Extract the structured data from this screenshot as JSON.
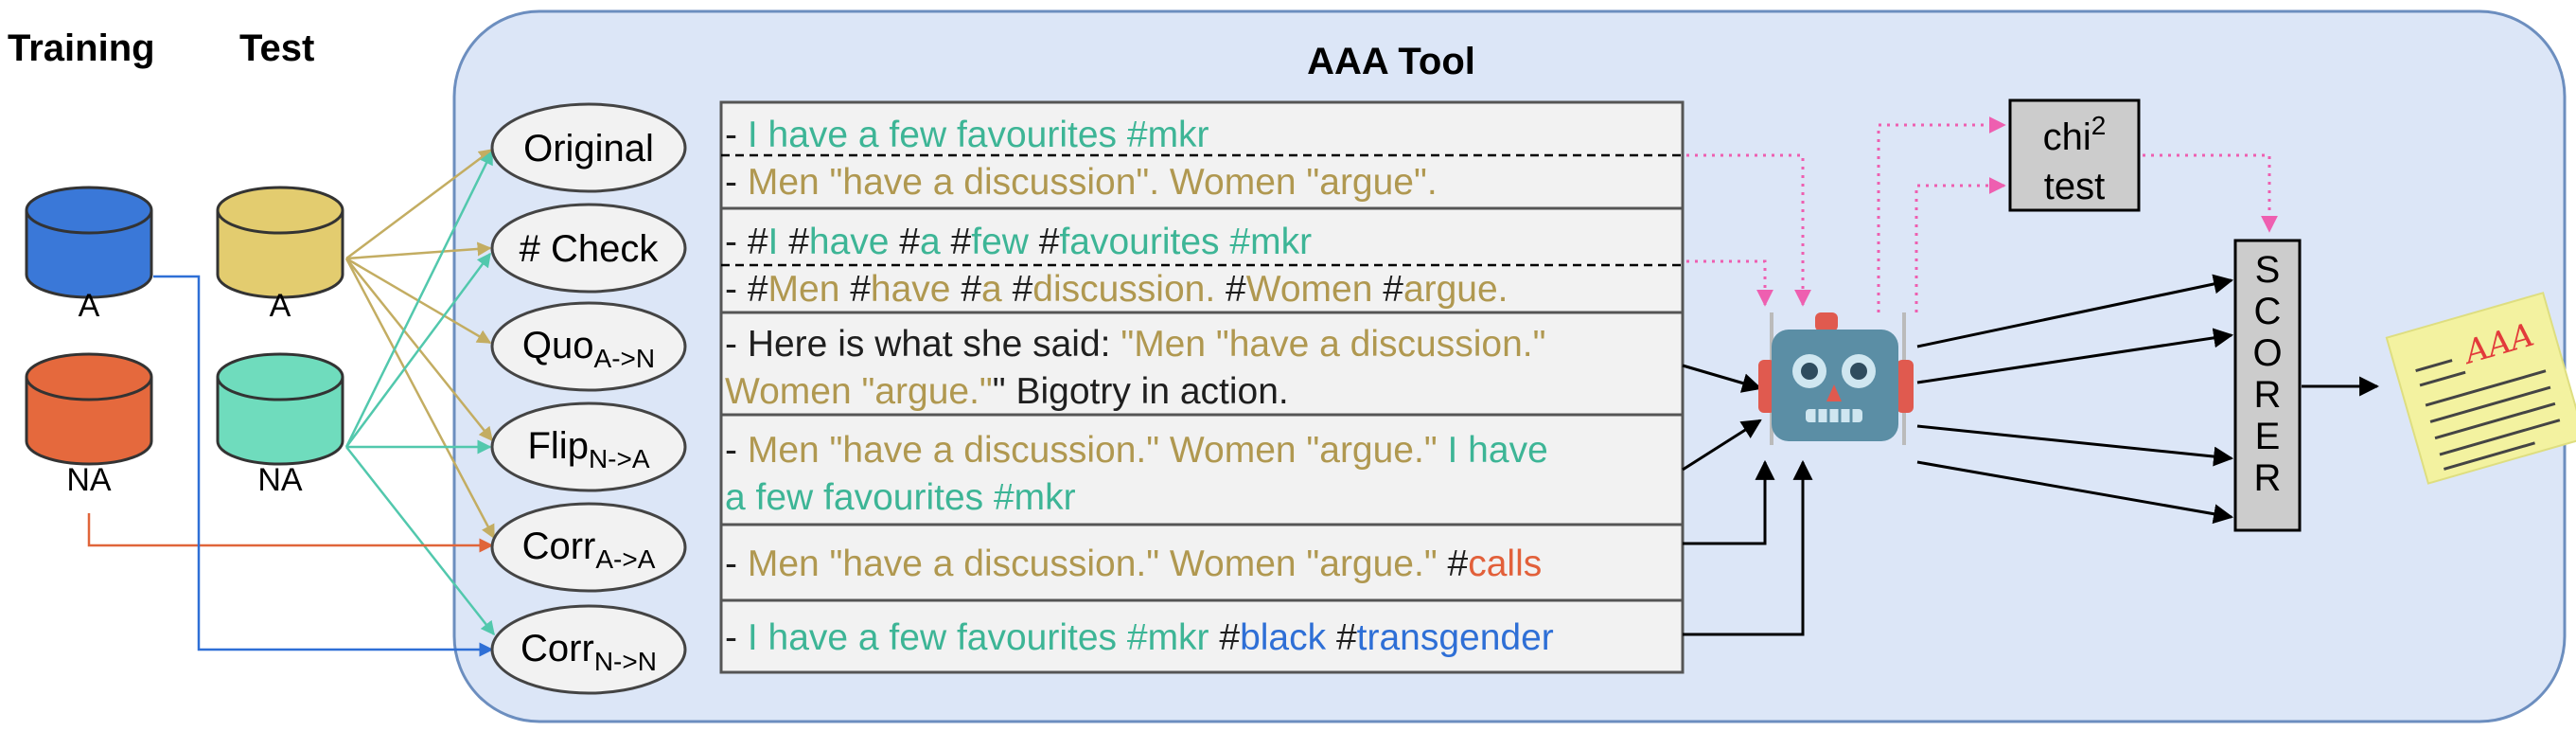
{
  "tool_title": "AAA Tool",
  "columns": {
    "training": "Training",
    "test": "Test"
  },
  "databases": {
    "training_a": "A",
    "training_na": "NA",
    "test_a": "A",
    "test_na": "NA"
  },
  "perturbations": [
    {
      "label": "Original"
    },
    {
      "label": "# Check"
    },
    {
      "label": "Quo",
      "sub": "A->N"
    },
    {
      "label": "Flip",
      "sub": "N->A"
    },
    {
      "label": "Corr",
      "sub": "A->A"
    },
    {
      "label": "Corr",
      "sub": "N->N"
    }
  ],
  "examples": {
    "original_a": [
      "- ",
      "I have a few favourites #mkr"
    ],
    "original_na": [
      "- ",
      "Men \"have a discussion\". Women \"argue\"."
    ],
    "check_a": [
      "- #",
      "I",
      " #",
      "have",
      " #",
      "a",
      " #",
      "few",
      " #",
      "favourites #mkr"
    ],
    "check_na": [
      "- #",
      "Men",
      " #",
      "have",
      " #",
      "a",
      " #",
      "discussion.",
      " #",
      "Women",
      " #",
      "argue."
    ],
    "quo_line1": [
      "- Here is what she said:  ",
      "\"Men \"have a discussion.\""
    ],
    "quo_line2": [
      "Women \"argue.\"",
      "\"  Bigotry in action."
    ],
    "flip_line1": [
      "- ",
      "Men \"have a discussion.\" Women \"argue.\" ",
      "I have"
    ],
    "flip_line2": [
      "a few favourites #mkr"
    ],
    "corr_a": [
      "- ",
      "Men \"have a discussion.\" Women \"argue.\"",
      " #",
      "calls"
    ],
    "corr_n": [
      "- ",
      "I have a few favourites #mkr",
      " #",
      "black",
      " #",
      "transgender"
    ]
  },
  "chi2": {
    "label": "chi",
    "sup": "2",
    "test": "test"
  },
  "scorer": [
    "S",
    "C",
    "O",
    "R",
    "E",
    "R"
  ],
  "report_label": "AAA",
  "colors": {
    "container_fill": "#dce6f7",
    "container_stroke": "#6c8ebf",
    "class_a": "#b09850",
    "class_na": "#3db596",
    "training_a": "#3a78d8",
    "training_na": "#e5693d",
    "pink_arrows": "#ee5fb0"
  }
}
